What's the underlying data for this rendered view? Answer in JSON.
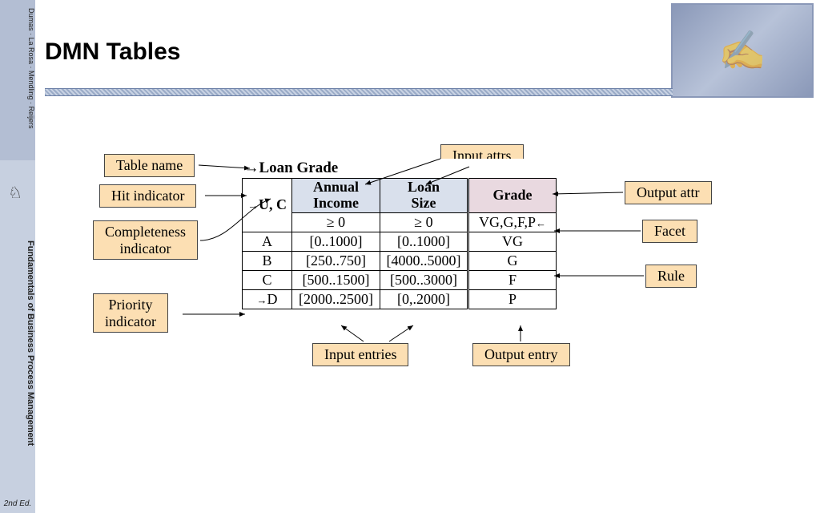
{
  "sidebar": {
    "authors": "Dumas · La Rosa · Mendling · Reijers",
    "booktitle": "Fundamentals of Business Process Management",
    "edition": "2nd Ed."
  },
  "title": "DMN Tables",
  "callouts": {
    "table_name": "Table name",
    "hit_indicator": "Hit indicator",
    "completeness_indicator": "Completeness\nindicator",
    "priority_indicator": "Priority\nindicator",
    "input_attrs": "Input attrs",
    "output_attr": "Output attr",
    "facet": "Facet",
    "rule": "Rule",
    "input_entries": "Input entries",
    "output_entry": "Output entry"
  },
  "table": {
    "name": "Loan Grade",
    "hit": "U, C",
    "input_headers": [
      "Annual Income",
      "Loan Size"
    ],
    "output_header": "Grade",
    "domain_row": {
      "inputs": [
        "≥ 0",
        "≥ 0"
      ],
      "output": "VG,G,F,P"
    },
    "rules": [
      {
        "id": "A",
        "inputs": [
          "[0..1000]",
          "[0..1000]"
        ],
        "output": "VG"
      },
      {
        "id": "B",
        "inputs": [
          "[250..750]",
          "[4000..5000]"
        ],
        "output": "G"
      },
      {
        "id": "C",
        "inputs": [
          "[500..1500]",
          "[500..3000]"
        ],
        "output": "F"
      },
      {
        "id": "D",
        "inputs": [
          "[2000..2500]",
          "[0,.2000]"
        ],
        "output": "P"
      }
    ]
  },
  "style": {
    "callout_bg": "#fcdfb3",
    "input_header_bg": "#d9e0ec",
    "output_header_bg": "#e9d9e0",
    "callout_fontsize": 18,
    "table_fontsize": 18
  }
}
